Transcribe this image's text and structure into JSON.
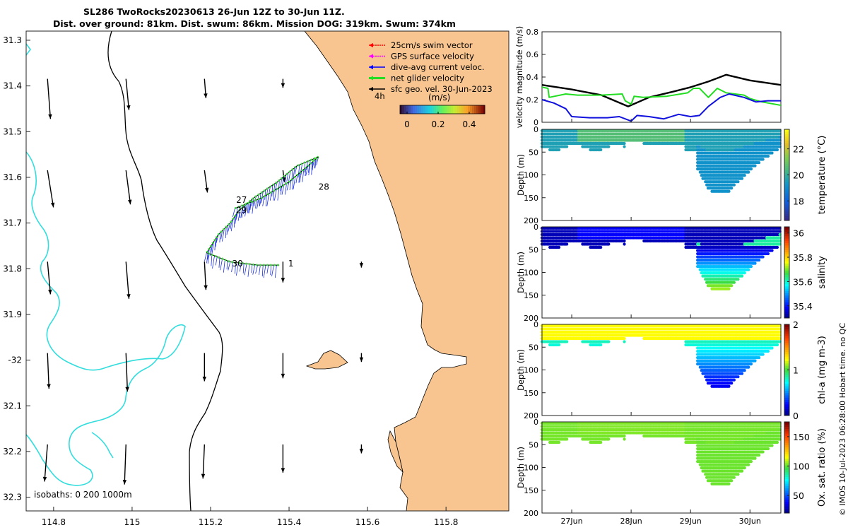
{
  "header": {
    "title_line1": "SL286 TwoRocks20230613 26-Jun 12Z to 30-Jun 11Z.",
    "title_line2": "Dist. over ground: 81km. Dist. swum: 86km. Mission DOG: 319km. Swum: 374km"
  },
  "side_note": "© IMOS 10-Jul-2023 06:28:00 Hobart time. no QC",
  "chart_data": [
    {
      "id": "map",
      "type": "map",
      "xlim": [
        114.73,
        115.96
      ],
      "ylim": [
        -32.33,
        -31.28
      ],
      "xticks": [
        114.8,
        115,
        115.2,
        115.4,
        115.6,
        115.8
      ],
      "xtick_labels": [
        "114.8",
        "115",
        "115.2",
        "115.4",
        "115.6",
        "115.8"
      ],
      "yticks": [
        -31.3,
        -31.4,
        -31.5,
        -31.6,
        -31.7,
        -31.8,
        -31.9,
        -32,
        -32.1,
        -32.2,
        -32.3
      ],
      "ytick_labels": [
        "31.3",
        "31.4",
        "31.5",
        "31.6",
        "31.7",
        "31.8",
        "31.9",
        "-32",
        "32.1",
        "32.2",
        "32.3"
      ],
      "legend": [
        {
          "label": "25cm/s swim vector",
          "color": "#ff0000"
        },
        {
          "label": "GPS surface velocity",
          "color": "#ff00ff"
        },
        {
          "label": "dive-avg current veloc.",
          "color": "#0000ff"
        },
        {
          "label": "net glider velocity",
          "color": "#22dd22"
        },
        {
          "label": "sfc geo. vel. 30-Jun-2023",
          "color": "#000000"
        }
      ],
      "legend_extra": "4h",
      "colorbar": {
        "label": "(m/s)",
        "ticks": [
          "0",
          "0.2",
          "0.4"
        ],
        "range": [
          0,
          0.5
        ]
      },
      "isobath_note": "isobaths: 0   200  1000m",
      "day_labels": [
        {
          "text": "28",
          "lon": 115.475,
          "lat": -31.627
        },
        {
          "text": "27",
          "lon": 115.265,
          "lat": -31.656
        },
        {
          "text": "29",
          "lon": 115.265,
          "lat": -31.678
        },
        {
          "text": "30",
          "lon": 115.255,
          "lat": -31.795
        },
        {
          "text": "1",
          "lon": 115.398,
          "lat": -31.795
        }
      ],
      "track": [
        [
          115.475,
          -31.555
        ],
        [
          115.42,
          -31.575
        ],
        [
          115.37,
          -31.61
        ],
        [
          115.31,
          -31.645
        ],
        [
          115.27,
          -31.675
        ],
        [
          115.25,
          -31.7
        ],
        [
          115.22,
          -31.725
        ],
        [
          115.19,
          -31.765
        ],
        [
          115.25,
          -31.785
        ],
        [
          115.32,
          -31.792
        ],
        [
          115.375,
          -31.792
        ]
      ],
      "track_return": [
        [
          115.262,
          -31.668
        ],
        [
          115.33,
          -31.645
        ],
        [
          115.4,
          -31.61
        ],
        [
          115.475,
          -31.555
        ]
      ],
      "geo_vectors": [
        {
          "lon": 114.77,
          "lat": -31.4,
          "u": 0.02,
          "v": -0.27
        },
        {
          "lon": 114.97,
          "lat": -31.4,
          "u": 0.02,
          "v": -0.21
        },
        {
          "lon": 115.17,
          "lat": -31.4,
          "u": 0.01,
          "v": -0.13
        },
        {
          "lon": 115.37,
          "lat": -31.4,
          "u": 0.0,
          "v": -0.06
        },
        {
          "lon": 114.77,
          "lat": -31.6,
          "u": 0.04,
          "v": -0.25
        },
        {
          "lon": 114.97,
          "lat": -31.6,
          "u": 0.03,
          "v": -0.23
        },
        {
          "lon": 115.17,
          "lat": -31.6,
          "u": 0.02,
          "v": -0.15
        },
        {
          "lon": 115.37,
          "lat": -31.6,
          "u": 0.01,
          "v": -0.08
        },
        {
          "lon": 114.77,
          "lat": -31.8,
          "u": 0.02,
          "v": -0.22
        },
        {
          "lon": 114.97,
          "lat": -31.8,
          "u": 0.02,
          "v": -0.25
        },
        {
          "lon": 115.17,
          "lat": -31.8,
          "u": 0.01,
          "v": -0.19
        },
        {
          "lon": 115.37,
          "lat": -31.8,
          "u": 0.0,
          "v": -0.14
        },
        {
          "lon": 115.57,
          "lat": -31.8,
          "u": 0.0,
          "v": -0.04
        },
        {
          "lon": 114.77,
          "lat": -32.0,
          "u": 0.01,
          "v": -0.24
        },
        {
          "lon": 114.97,
          "lat": -32.0,
          "u": 0.01,
          "v": -0.26
        },
        {
          "lon": 115.17,
          "lat": -32.0,
          "u": 0.0,
          "v": -0.19
        },
        {
          "lon": 115.37,
          "lat": -32.0,
          "u": 0.0,
          "v": -0.17
        },
        {
          "lon": 115.57,
          "lat": -32.0,
          "u": 0.0,
          "v": -0.06
        },
        {
          "lon": 114.77,
          "lat": -32.2,
          "u": -0.02,
          "v": -0.25
        },
        {
          "lon": 114.97,
          "lat": -32.2,
          "u": -0.01,
          "v": -0.27
        },
        {
          "lon": 115.17,
          "lat": -32.2,
          "u": -0.01,
          "v": -0.23
        },
        {
          "lon": 115.37,
          "lat": -32.2,
          "u": 0.0,
          "v": -0.19
        },
        {
          "lon": 115.57,
          "lat": -32.2,
          "u": 0.0,
          "v": -0.06
        }
      ]
    },
    {
      "id": "velocity",
      "type": "line",
      "ylabel": "velocity magnitude (m/s)",
      "ylim": [
        0,
        0.8
      ],
      "yticks": [
        0,
        0.2,
        0.4,
        0.6,
        0.8
      ],
      "ytick_labels": [
        "0",
        "0.2",
        "0.4",
        "0.6",
        "0.8"
      ],
      "xlim": [
        26.5,
        30.52
      ],
      "series": [
        {
          "name": "sfc geo. vel.",
          "color": "#000000",
          "x": [
            26.5,
            27.0,
            27.5,
            27.95,
            28.3,
            28.7,
            29.0,
            29.3,
            29.6,
            30.0,
            30.52
          ],
          "y": [
            0.33,
            0.29,
            0.24,
            0.14,
            0.22,
            0.27,
            0.31,
            0.36,
            0.42,
            0.37,
            0.33
          ]
        },
        {
          "name": "net glider velocity",
          "color": "#22dd22",
          "x": [
            26.5,
            26.6,
            26.62,
            26.9,
            27.1,
            27.5,
            27.85,
            27.9,
            28.0,
            28.05,
            28.2,
            28.6,
            28.95,
            29.05,
            29.15,
            29.3,
            29.45,
            29.6,
            29.9,
            30.0,
            30.2,
            30.52
          ],
          "y": [
            0.31,
            0.3,
            0.22,
            0.25,
            0.24,
            0.24,
            0.25,
            0.19,
            0.16,
            0.23,
            0.22,
            0.23,
            0.26,
            0.3,
            0.3,
            0.22,
            0.3,
            0.26,
            0.24,
            0.21,
            0.18,
            0.15
          ]
        },
        {
          "name": "dive-avg current veloc.",
          "color": "#1111dd",
          "x": [
            26.5,
            26.7,
            26.9,
            27.0,
            27.3,
            27.6,
            27.8,
            28.0,
            28.1,
            28.3,
            28.55,
            28.8,
            29.0,
            29.15,
            29.3,
            29.5,
            29.65,
            29.9,
            30.1,
            30.3,
            30.52
          ],
          "y": [
            0.2,
            0.17,
            0.12,
            0.05,
            0.04,
            0.04,
            0.05,
            0.01,
            0.06,
            0.05,
            0.03,
            0.07,
            0.05,
            0.06,
            0.14,
            0.22,
            0.25,
            0.22,
            0.18,
            0.19,
            0.19
          ]
        }
      ]
    },
    {
      "id": "temperature",
      "type": "scatter-section",
      "ylabel": "Depth (m)",
      "clabel": "temperature (°C)",
      "ylim": [
        0,
        200
      ],
      "yticks": [
        0,
        50,
        100,
        150,
        200
      ],
      "cbar_range": [
        16.5,
        23.5
      ],
      "cbar_ticks": [
        18,
        20,
        22
      ],
      "base_value": 19.6,
      "hi_value": 20.6,
      "lo_value": 19.2,
      "map": "parula"
    },
    {
      "id": "salinity",
      "type": "scatter-section",
      "ylabel": "Depth (m)",
      "clabel": "salinity",
      "ylim": [
        0,
        200
      ],
      "yticks": [
        0,
        50,
        100,
        150,
        200
      ],
      "cbar_range": [
        35.3,
        36.05
      ],
      "cbar_ticks": [
        35.4,
        35.6,
        35.8,
        36
      ],
      "base_value": 35.33,
      "hi_value": 35.38,
      "lo_value": 35.62,
      "map": "jet"
    },
    {
      "id": "chla",
      "type": "scatter-section",
      "ylabel": "Depth (m)",
      "clabel": "chl-a (mg m-3)",
      "ylim": [
        0,
        200
      ],
      "yticks": [
        0,
        50,
        100,
        150,
        200
      ],
      "cbar_range": [
        0,
        2
      ],
      "cbar_ticks": [
        0,
        1,
        2
      ],
      "base_value": 0.85,
      "hi_value": 1.25,
      "lo_value": 0.2,
      "map": "jet"
    },
    {
      "id": "oxygen",
      "type": "scatter-section",
      "ylabel": "Depth (m)",
      "clabel": "Ox. sat. ratio (%)",
      "ylim": [
        0,
        200
      ],
      "yticks": [
        0,
        50,
        100,
        150,
        200
      ],
      "cbar_range": [
        20,
        175
      ],
      "cbar_ticks": [
        50,
        100,
        150
      ],
      "base_value": 103,
      "hi_value": 104,
      "lo_value": 102,
      "map": "jet"
    }
  ],
  "time_axis": {
    "ticks": [
      27,
      28,
      29,
      30
    ],
    "labels": [
      "27Jun",
      "28Jun",
      "29Jun",
      "30Jun"
    ]
  }
}
